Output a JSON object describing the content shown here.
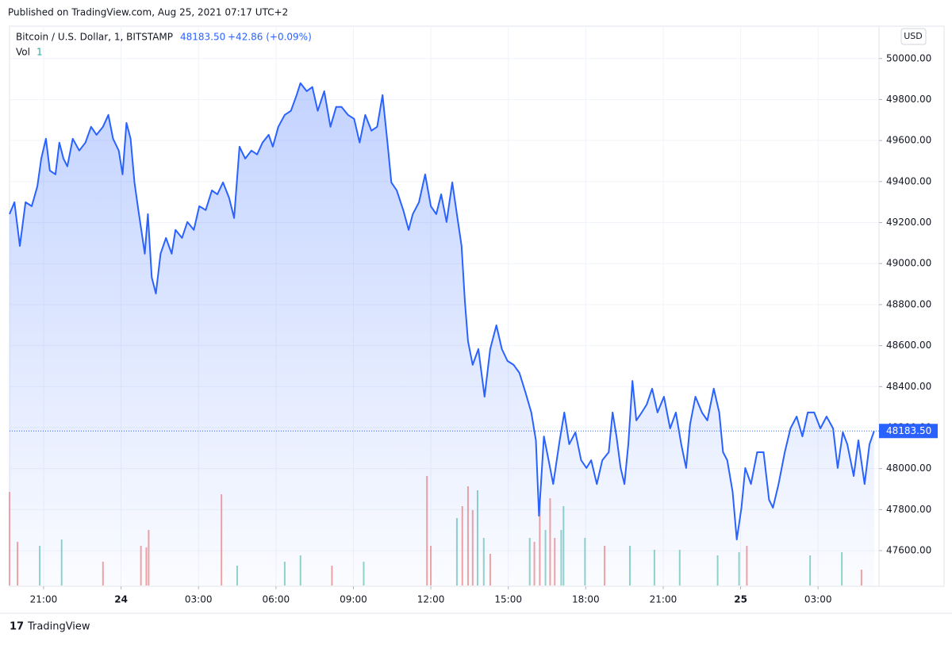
{
  "header": {
    "published": "Published on TradingView.com, Aug 25, 2021 07:17 UTC+2",
    "logo": "TradingView"
  },
  "chart_data": {
    "type": "area",
    "series": [
      {
        "name": "Bitcoin / U.S. Dollar, 1, BITSTAMP",
        "color": "#2962ff",
        "x": [
          -4.32,
          -4.13,
          -3.92,
          -3.7,
          -3.46,
          -3.24,
          -3.09,
          -2.91,
          -2.76,
          -2.54,
          -2.39,
          -2.23,
          -2.08,
          -1.87,
          -1.62,
          -1.38,
          -1.16,
          -0.95,
          -0.7,
          -0.49,
          -0.31,
          -0.09,
          0.06,
          0.21,
          0.37,
          0.52,
          0.67,
          0.83,
          0.92,
          1.04,
          1.19,
          1.35,
          1.53,
          1.74,
          1.96,
          2.11,
          2.36,
          2.57,
          2.82,
          3.03,
          3.28,
          3.52,
          3.73,
          3.95,
          4.19,
          4.38,
          4.59,
          4.81,
          5.05,
          5.27,
          5.48,
          5.72,
          5.88,
          6.09,
          6.34,
          6.58,
          6.8,
          6.95,
          7.19,
          7.41,
          7.62,
          7.87,
          8.11,
          8.33,
          8.54,
          8.79,
          9.03,
          9.24,
          9.46,
          9.7,
          9.92,
          10.13,
          10.32,
          10.47,
          10.68,
          10.93,
          11.14,
          11.3,
          11.54,
          11.78,
          12.0,
          12.21,
          12.4,
          12.61,
          12.83,
          13.01,
          13.19,
          13.32,
          13.44,
          13.62,
          13.84,
          14.08,
          14.3,
          14.54,
          14.75,
          14.97,
          15.21,
          15.43,
          15.67,
          15.89,
          16.07,
          16.19,
          16.38,
          16.56,
          16.74,
          16.99,
          17.17,
          17.36,
          17.6,
          17.82,
          18.03,
          18.21,
          18.43,
          18.64,
          18.89,
          19.04,
          19.19,
          19.35,
          19.5,
          19.65,
          19.81,
          19.96,
          20.17,
          20.36,
          20.57,
          20.78,
          21.03,
          21.27,
          21.49,
          21.7,
          21.89,
          22.04,
          22.25,
          22.5,
          22.71,
          22.96,
          23.17,
          23.32,
          23.48,
          23.69,
          23.85,
          24.03,
          24.18,
          24.4,
          24.64,
          24.89,
          25.1,
          25.25,
          25.47,
          25.71,
          25.93,
          26.17,
          26.39,
          26.6,
          26.85,
          27.09,
          27.33,
          27.58,
          27.76,
          27.96,
          28.13,
          28.38,
          28.56,
          28.8,
          28.99,
          29.17
        ],
        "values": [
          49241,
          49299,
          49086,
          49299,
          49280,
          49377,
          49512,
          49609,
          49454,
          49435,
          49590,
          49512,
          49474,
          49609,
          49551,
          49590,
          49667,
          49628,
          49667,
          49725,
          49609,
          49551,
          49435,
          49686,
          49609,
          49396,
          49261,
          49125,
          49048,
          49241,
          48932,
          48854,
          49048,
          49125,
          49048,
          49164,
          49125,
          49203,
          49164,
          49280,
          49261,
          49357,
          49338,
          49396,
          49319,
          49222,
          49570,
          49512,
          49551,
          49532,
          49590,
          49628,
          49570,
          49667,
          49725,
          49745,
          49822,
          49880,
          49841,
          49861,
          49745,
          49841,
          49667,
          49764,
          49764,
          49725,
          49706,
          49590,
          49725,
          49648,
          49667,
          49822,
          49590,
          49396,
          49357,
          49261,
          49164,
          49241,
          49299,
          49435,
          49280,
          49241,
          49338,
          49203,
          49396,
          49241,
          49086,
          48815,
          48622,
          48506,
          48583,
          48351,
          48583,
          48699,
          48583,
          48525,
          48506,
          48467,
          48370,
          48274,
          48138,
          47770,
          48157,
          48041,
          47925,
          48138,
          48274,
          48119,
          48177,
          48041,
          48003,
          48041,
          47925,
          48041,
          48080,
          48274,
          48157,
          48003,
          47925,
          48119,
          48428,
          48235,
          48274,
          48312,
          48390,
          48274,
          48351,
          48196,
          48274,
          48119,
          48003,
          48215,
          48351,
          48274,
          48235,
          48390,
          48274,
          48080,
          48041,
          47886,
          47654,
          47809,
          48003,
          47925,
          48080,
          48080,
          47848,
          47809,
          47925,
          48080,
          48196,
          48254,
          48157,
          48274,
          48274,
          48196,
          48254,
          48196,
          48003,
          48177,
          48119,
          47964,
          48138,
          47925,
          48119,
          48183.5
        ]
      }
    ],
    "last_label": "48183.50",
    "change": "+42.86 (+0.09%)",
    "currency": "USD",
    "volume": {
      "name": "Vol",
      "value_label": "1",
      "x": [
        -4.32,
        -4.01,
        -3.15,
        -2.3,
        -0.7,
        0.77,
        0.98,
        1.07,
        3.89,
        4.5,
        6.34,
        6.95,
        8.17,
        9.4,
        11.85,
        12.0,
        13.01,
        13.22,
        13.44,
        13.62,
        13.81,
        14.05,
        14.3,
        15.83,
        16.01,
        16.22,
        16.44,
        16.62,
        16.8,
        17.05,
        17.14,
        17.97,
        18.73,
        19.71,
        20.66,
        21.64,
        23.11,
        23.94,
        24.24,
        26.69,
        27.92,
        28.68
      ],
      "values": [
        118,
        55,
        50,
        58,
        30,
        50,
        48,
        70,
        115,
        25,
        30,
        38,
        25,
        30,
        138,
        50,
        85,
        100,
        125,
        95,
        120,
        60,
        40,
        60,
        55,
        105,
        70,
        110,
        60,
        70,
        100,
        60,
        50,
        50,
        45,
        45,
        38,
        42,
        50,
        38,
        42,
        20
      ],
      "colors": [
        "#f3a3a1",
        "#f3a3a1",
        "#92d3cc",
        "#92d3cc",
        "#f3a3a1",
        "#f3a3a1",
        "#f3a3a1",
        "#f3a3a1",
        "#f3a3a1",
        "#92d3cc",
        "#92d3cc",
        "#92d3cc",
        "#f3a3a1",
        "#92d3cc",
        "#f3a3a1",
        "#f3a3a1",
        "#92d3cc",
        "#f3a3a1",
        "#f3a3a1",
        "#f3a3a1",
        "#92d3cc",
        "#92d3cc",
        "#f3a3a1",
        "#92d3cc",
        "#f3a3a1",
        "#f3a3a1",
        "#92d3cc",
        "#f3a3a1",
        "#f3a3a1",
        "#92d3cc",
        "#92d3cc",
        "#92d3cc",
        "#f3a3a1",
        "#92d3cc",
        "#92d3cc",
        "#92d3cc",
        "#92d3cc",
        "#92d3cc",
        "#f3a3a1",
        "#92d3cc",
        "#92d3cc",
        "#f3a3a1"
      ]
    },
    "xlim": [
      -4.32,
      29.36
    ],
    "ylim": [
      47430,
      50150
    ],
    "xticks": [
      {
        "value": -3,
        "label": "21:00"
      },
      {
        "value": 0,
        "label": "24"
      },
      {
        "value": 3,
        "label": "03:00"
      },
      {
        "value": 6,
        "label": "06:00"
      },
      {
        "value": 9,
        "label": "09:00"
      },
      {
        "value": 12,
        "label": "12:00"
      },
      {
        "value": 15,
        "label": "15:00"
      },
      {
        "value": 18,
        "label": "18:00"
      },
      {
        "value": 21,
        "label": "21:00"
      },
      {
        "value": 24,
        "label": "25"
      },
      {
        "value": 27,
        "label": "03:00"
      }
    ],
    "yticks": [
      {
        "value": 47600,
        "label": "47600.00"
      },
      {
        "value": 47800,
        "label": "47800.00"
      },
      {
        "value": 48000,
        "label": "48000.00"
      },
      {
        "value": 48200,
        "label": "48200.00"
      },
      {
        "value": 48400,
        "label": "48400.00"
      },
      {
        "value": 48600,
        "label": "48600.00"
      },
      {
        "value": 48800,
        "label": "48800.00"
      },
      {
        "value": 49000,
        "label": "49000.00"
      },
      {
        "value": 49200,
        "label": "49200.00"
      },
      {
        "value": 49400,
        "label": "49400.00"
      },
      {
        "value": 49600,
        "label": "49600.00"
      },
      {
        "value": 49800,
        "label": "49800.00"
      },
      {
        "value": 50000,
        "label": "50000.00"
      }
    ],
    "grid": true
  }
}
